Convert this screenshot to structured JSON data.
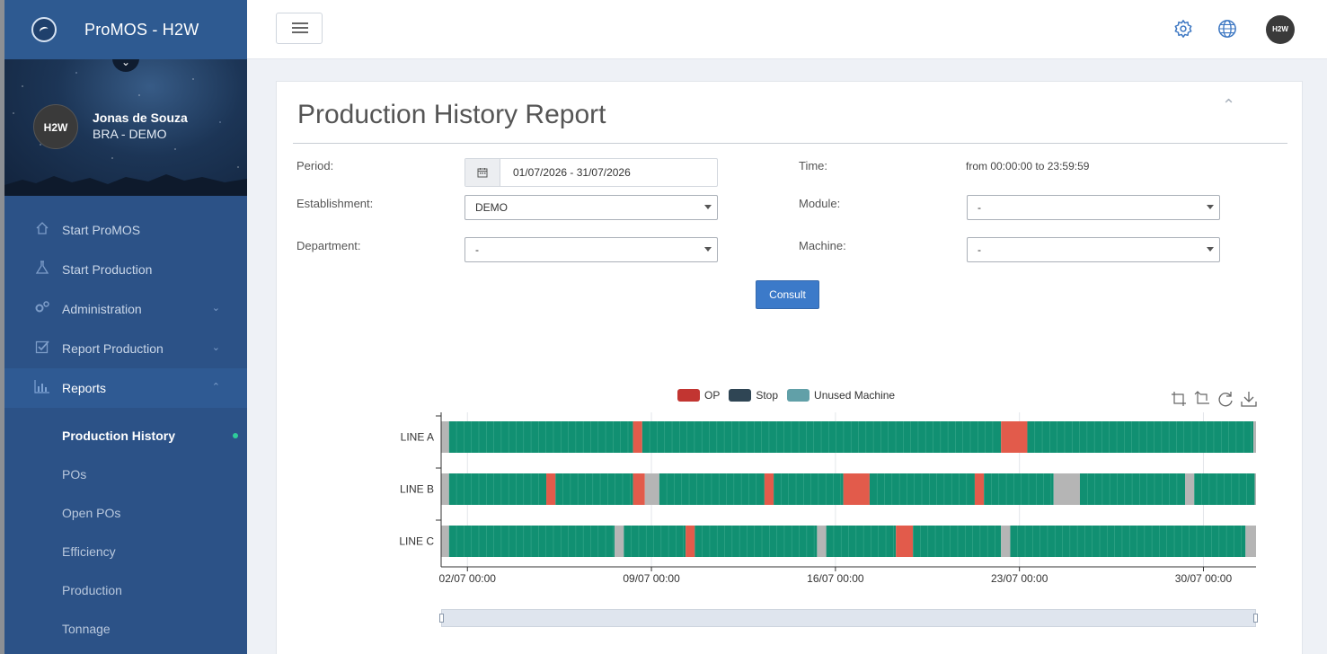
{
  "app": {
    "name": "ProMOS - H2W"
  },
  "user": {
    "name": "Jonas de Souza",
    "org": "BRA - DEMO",
    "avatar_text": "H2W"
  },
  "sidebar": {
    "items": [
      {
        "label": "Start ProMOS",
        "icon": "home-icon"
      },
      {
        "label": "Start Production",
        "icon": "flask-icon"
      },
      {
        "label": "Administration",
        "icon": "cogs-icon",
        "expandable": true
      },
      {
        "label": "Report Production",
        "icon": "checkbox-icon",
        "expandable": true
      },
      {
        "label": "Reports",
        "icon": "bar-chart-icon",
        "expandable": true,
        "active": true
      }
    ],
    "subitems": [
      {
        "label": "Production History",
        "current": true
      },
      {
        "label": "POs"
      },
      {
        "label": "Open POs"
      },
      {
        "label": "Efficiency"
      },
      {
        "label": "Production"
      },
      {
        "label": "Tonnage"
      }
    ]
  },
  "header": {
    "avatar_text": "H2W"
  },
  "report": {
    "title": "Production History Report",
    "period_label": "Period:",
    "period_value": "01/07/2026 - 31/07/2026",
    "time_label": "Time:",
    "time_value": "from 00:00:00 to 23:59:59",
    "establishment_label": "Establishment:",
    "establishment_value": "DEMO",
    "module_label": "Module:",
    "module_value": "-",
    "department_label": "Department:",
    "department_value": "-",
    "machine_label": "Machine:",
    "machine_value": "-",
    "consult_label": "Consult"
  },
  "chart_data": {
    "type": "gantt",
    "legend": [
      {
        "name": "OP",
        "color": "#c23531"
      },
      {
        "name": "Stop",
        "color": "#2f4554"
      },
      {
        "name": "Unused Machine",
        "color": "#61a0a8"
      }
    ],
    "bar_colors": {
      "running": "#119072",
      "op": "#e25b4b",
      "unused": "#b5b5b5"
    },
    "lines": [
      "LINE A",
      "LINE B",
      "LINE C"
    ],
    "x_ticks": [
      "02/07 00:00",
      "09/07 00:00",
      "16/07 00:00",
      "23/07 00:00",
      "30/07 00:00"
    ],
    "x_range_days": [
      1.0,
      32.0
    ],
    "tick_days": [
      2,
      9,
      16,
      23,
      30
    ],
    "segments": {
      "LINE A": [
        {
          "start": 1.0,
          "end": 1.3,
          "state": "unused"
        },
        {
          "start": 1.3,
          "end": 8.3,
          "state": "running"
        },
        {
          "start": 8.3,
          "end": 8.65,
          "state": "op"
        },
        {
          "start": 8.65,
          "end": 22.3,
          "state": "running"
        },
        {
          "start": 22.3,
          "end": 23.3,
          "state": "op"
        },
        {
          "start": 23.3,
          "end": 31.9,
          "state": "running"
        },
        {
          "start": 31.9,
          "end": 32.0,
          "state": "unused"
        }
      ],
      "LINE B": [
        {
          "start": 1.0,
          "end": 1.3,
          "state": "unused"
        },
        {
          "start": 1.3,
          "end": 5.0,
          "state": "running"
        },
        {
          "start": 5.0,
          "end": 5.35,
          "state": "op"
        },
        {
          "start": 5.35,
          "end": 8.3,
          "state": "running"
        },
        {
          "start": 8.3,
          "end": 8.75,
          "state": "op"
        },
        {
          "start": 8.75,
          "end": 9.3,
          "state": "unused"
        },
        {
          "start": 9.3,
          "end": 13.3,
          "state": "running"
        },
        {
          "start": 13.3,
          "end": 13.65,
          "state": "op"
        },
        {
          "start": 13.65,
          "end": 16.3,
          "state": "running"
        },
        {
          "start": 16.3,
          "end": 17.3,
          "state": "op"
        },
        {
          "start": 17.3,
          "end": 21.3,
          "state": "running"
        },
        {
          "start": 21.3,
          "end": 21.65,
          "state": "op"
        },
        {
          "start": 21.65,
          "end": 24.3,
          "state": "running"
        },
        {
          "start": 24.3,
          "end": 25.3,
          "state": "unused"
        },
        {
          "start": 25.3,
          "end": 29.3,
          "state": "running"
        },
        {
          "start": 29.3,
          "end": 29.65,
          "state": "unused"
        },
        {
          "start": 29.65,
          "end": 31.95,
          "state": "running"
        },
        {
          "start": 31.95,
          "end": 32.0,
          "state": "unused"
        }
      ],
      "LINE C": [
        {
          "start": 1.0,
          "end": 1.3,
          "state": "unused"
        },
        {
          "start": 1.3,
          "end": 7.6,
          "state": "running"
        },
        {
          "start": 7.6,
          "end": 7.95,
          "state": "unused"
        },
        {
          "start": 7.95,
          "end": 10.3,
          "state": "running"
        },
        {
          "start": 10.3,
          "end": 10.65,
          "state": "op"
        },
        {
          "start": 10.65,
          "end": 15.3,
          "state": "running"
        },
        {
          "start": 15.3,
          "end": 15.65,
          "state": "unused"
        },
        {
          "start": 15.65,
          "end": 18.3,
          "state": "running"
        },
        {
          "start": 18.3,
          "end": 18.95,
          "state": "op"
        },
        {
          "start": 18.95,
          "end": 22.3,
          "state": "running"
        },
        {
          "start": 22.3,
          "end": 22.65,
          "state": "unused"
        },
        {
          "start": 22.65,
          "end": 31.6,
          "state": "running"
        },
        {
          "start": 31.6,
          "end": 32.0,
          "state": "unused"
        }
      ]
    }
  }
}
